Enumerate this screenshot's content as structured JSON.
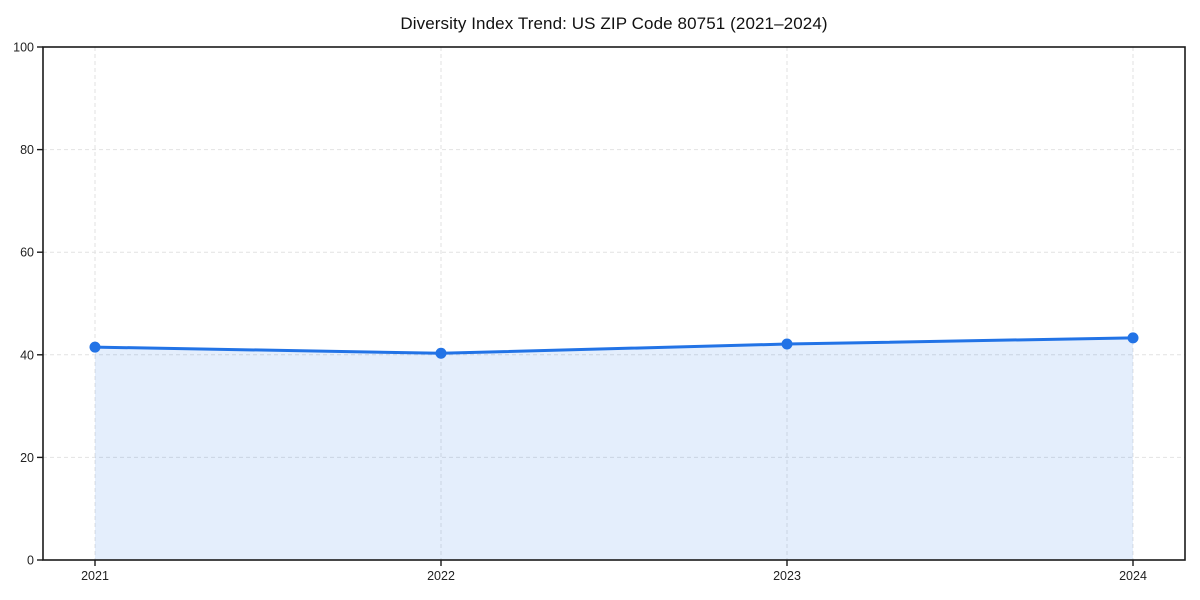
{
  "chart_data": {
    "type": "line",
    "title": "Diversity Index Trend: US ZIP Code 80751 (2021–2024)",
    "categories": [
      "2021",
      "2022",
      "2023",
      "2024"
    ],
    "values": [
      41.5,
      40.3,
      42.1,
      43.3
    ],
    "series_name": "Diversity Index",
    "xlabel": "",
    "ylabel": "",
    "ylim": [
      0,
      100
    ],
    "yticks": [
      0,
      20,
      40,
      60,
      80,
      100
    ],
    "grid": true,
    "grid_style": "dashed",
    "legend": false,
    "area_fill": true,
    "marker": "circle",
    "colors": {
      "line": "#2273e6",
      "marker": "#2273e6",
      "area_fill": "#2273e6",
      "area_fill_opacity": 0.12,
      "grid": "#e2e2e2",
      "axis": "#1a1a1a",
      "tick_label": "#222222",
      "title": "#111111",
      "background": "#ffffff"
    }
  }
}
